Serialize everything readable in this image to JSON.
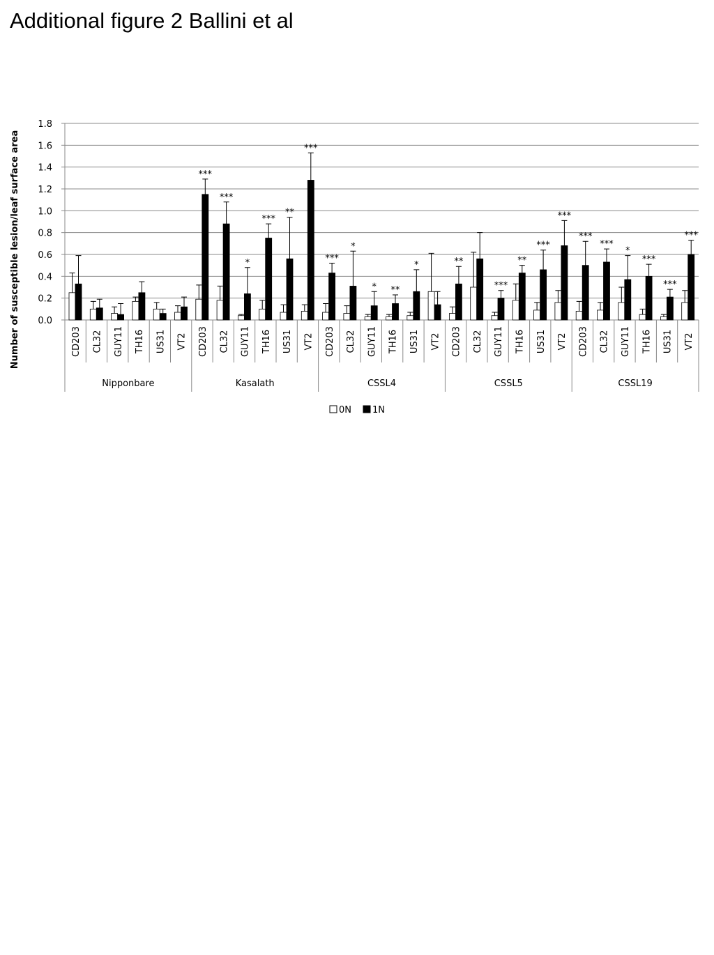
{
  "chart_data": {
    "type": "bar",
    "title": "Additional figure 2 Ballini et al",
    "y_label": "Number of susceptible lesion/leaf surface area",
    "groups": [
      {
        "name": "Nipponbare",
        "categories": [
          "CD203",
          "CL32",
          "GUY11",
          "TH16",
          "US31",
          "VT2"
        ]
      },
      {
        "name": "Kasalath",
        "categories": [
          "CD203",
          "CL32",
          "GUY11",
          "TH16",
          "US31",
          "VT2"
        ]
      },
      {
        "name": "CSSL4",
        "categories": [
          "CD203",
          "CL32",
          "GUY11",
          "TH16",
          "US31",
          "VT2"
        ]
      },
      {
        "name": "CSSL5",
        "categories": [
          "CD203",
          "CL32",
          "GUY11",
          "TH16",
          "US31",
          "VT2"
        ]
      },
      {
        "name": "CSSL19",
        "categories": [
          "CD203",
          "CL32",
          "GUY11",
          "TH16",
          "US31",
          "VT2"
        ]
      }
    ],
    "series": [
      {
        "name": "0N",
        "color": "#ffffff",
        "values": [
          0.25,
          0.1,
          0.06,
          0.17,
          0.1,
          0.07,
          0.19,
          0.18,
          0.04,
          0.1,
          0.07,
          0.08,
          0.07,
          0.06,
          0.03,
          0.03,
          0.04,
          0.26,
          0.06,
          0.3,
          0.04,
          0.18,
          0.09,
          0.16,
          0.08,
          0.09,
          0.16,
          0.05,
          0.03,
          0.16
        ],
        "errors": [
          0.18,
          0.07,
          0.06,
          0.04,
          0.06,
          0.06,
          0.13,
          0.13,
          0.01,
          0.08,
          0.07,
          0.06,
          0.08,
          0.07,
          0.02,
          0.02,
          0.03,
          0.35,
          0.06,
          0.32,
          0.03,
          0.15,
          0.07,
          0.11,
          0.09,
          0.07,
          0.14,
          0.05,
          0.02,
          0.11
        ]
      },
      {
        "name": "1N",
        "color": "#000000",
        "values": [
          0.33,
          0.11,
          0.05,
          0.25,
          0.06,
          0.12,
          1.15,
          0.88,
          0.24,
          0.75,
          0.56,
          1.28,
          0.43,
          0.31,
          0.13,
          0.15,
          0.26,
          0.14,
          0.33,
          0.56,
          0.2,
          0.43,
          0.46,
          0.68,
          0.5,
          0.53,
          0.37,
          0.4,
          0.21,
          0.6
        ],
        "errors": [
          0.26,
          0.08,
          0.1,
          0.1,
          0.04,
          0.09,
          0.14,
          0.2,
          0.24,
          0.13,
          0.38,
          0.25,
          0.09,
          0.32,
          0.13,
          0.08,
          0.2,
          0.12,
          0.16,
          0.24,
          0.07,
          0.07,
          0.18,
          0.23,
          0.22,
          0.12,
          0.22,
          0.11,
          0.07,
          0.13
        ],
        "annotations": [
          null,
          null,
          null,
          null,
          null,
          null,
          "***",
          "***",
          "*",
          "***",
          "**",
          "***",
          "***",
          "*",
          "*",
          "**",
          "*",
          null,
          "**",
          null,
          "***",
          "**",
          "***",
          "***",
          "***",
          "***",
          "*",
          "***",
          "***",
          "***"
        ]
      }
    ],
    "ylim": [
      0,
      1.8
    ],
    "yticks": [
      {
        "value": 0,
        "label": "0.0"
      },
      0.2,
      0.4,
      0.6,
      0.8,
      {
        "value": 1,
        "label": "1.0"
      },
      1.2,
      1.4,
      1.6,
      1.8
    ],
    "grid": true,
    "legend": "bottom"
  }
}
